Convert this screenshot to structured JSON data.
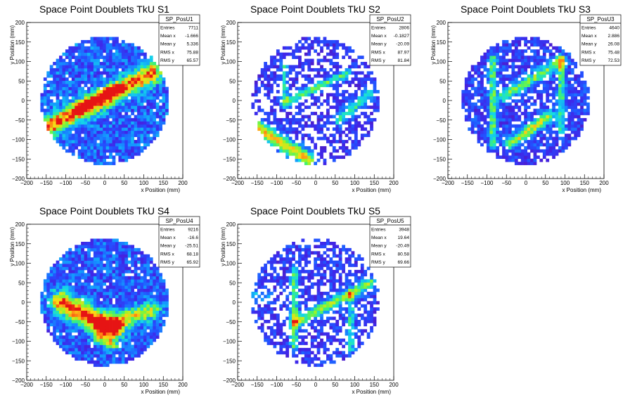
{
  "chart_data": [
    {
      "type": "heatmap",
      "title": "Space Point Doublets TkU S1",
      "xlabel": "x Position (mm)",
      "ylabel": "y Position (mm)",
      "xlim": [
        -200,
        200
      ],
      "ylim": [
        -200,
        200
      ],
      "xticks": [
        "−200",
        "−150",
        "−100",
        "−50",
        "0",
        "50",
        "100",
        "150",
        "200"
      ],
      "yticks": [
        "−200",
        "−150",
        "−100",
        "−50",
        "0",
        "50",
        "100",
        "150",
        "200"
      ],
      "grid": false,
      "stats": {
        "name": "SP_PosU1",
        "rows": [
          {
            "label": "Entries",
            "value": "7711"
          },
          {
            "label": "Mean x",
            "value": "-1.666"
          },
          {
            "label": "Mean y",
            "value": "5.336"
          },
          {
            "label": "RMS x",
            "value": "75.88"
          },
          {
            "label": "RMS y",
            "value": "65.57"
          }
        ]
      },
      "pattern": {
        "fill": 0.93,
        "base": 0.3,
        "lines": [
          {
            "x1": -140,
            "y1": -65,
            "x2": 120,
            "y2": 70,
            "w": 18,
            "a": 0.7
          },
          {
            "x1": -60,
            "y1": -20,
            "x2": 30,
            "y2": 30,
            "w": 10,
            "a": 0.4
          }
        ]
      }
    },
    {
      "type": "heatmap",
      "title": "Space Point Doublets TkU S2",
      "xlabel": "x Position (mm)",
      "ylabel": "y Position (mm)",
      "xlim": [
        -200,
        200
      ],
      "ylim": [
        -200,
        200
      ],
      "xticks": [
        "−200",
        "−150",
        "−100",
        "−50",
        "0",
        "50",
        "100",
        "150",
        "200"
      ],
      "yticks": [
        "−200",
        "−150",
        "−100",
        "−50",
        "0",
        "50",
        "100",
        "150",
        "200"
      ],
      "grid": false,
      "stats": {
        "name": "SP_PosU2",
        "rows": [
          {
            "label": "Entries",
            "value": "2806"
          },
          {
            "label": "Mean x",
            "value": "-0.1827"
          },
          {
            "label": "Mean y",
            "value": "-20.09"
          },
          {
            "label": "RMS x",
            "value": "87.97"
          },
          {
            "label": "RMS y",
            "value": "81.84"
          }
        ]
      },
      "pattern": {
        "fill": 0.55,
        "base": 0.18,
        "lines": [
          {
            "x1": -150,
            "y1": -70,
            "x2": -20,
            "y2": -150,
            "w": 14,
            "a": 0.65
          },
          {
            "x1": -70,
            "y1": 0,
            "x2": 80,
            "y2": 70,
            "w": 8,
            "a": 0.45
          },
          {
            "x1": -80,
            "y1": -10,
            "x2": -80,
            "y2": 90,
            "w": 7,
            "a": 0.35
          },
          {
            "x1": 60,
            "y1": -50,
            "x2": 140,
            "y2": 20,
            "w": 10,
            "a": 0.4
          }
        ]
      }
    },
    {
      "type": "heatmap",
      "title": "Space Point Doublets TkU S3",
      "xlabel": "x Position (mm)",
      "ylabel": "y Position (mm)",
      "xlim": [
        -200,
        200
      ],
      "ylim": [
        -200,
        200
      ],
      "xticks": [
        "−200",
        "−150",
        "−100",
        "−50",
        "0",
        "50",
        "100",
        "150",
        "200"
      ],
      "yticks": [
        "−200",
        "−150",
        "−100",
        "−50",
        "0",
        "50",
        "100",
        "150",
        "200"
      ],
      "grid": false,
      "stats": {
        "name": "SP_PosU3",
        "rows": [
          {
            "label": "Entries",
            "value": "4640"
          },
          {
            "label": "Mean x",
            "value": "2.886"
          },
          {
            "label": "Mean y",
            "value": "26.08"
          },
          {
            "label": "RMS x",
            "value": "75.48"
          },
          {
            "label": "RMS y",
            "value": "72.53"
          }
        ]
      },
      "pattern": {
        "fill": 0.78,
        "base": 0.22,
        "lines": [
          {
            "x1": -85,
            "y1": -110,
            "x2": -85,
            "y2": 110,
            "w": 7,
            "a": 0.45
          },
          {
            "x1": 90,
            "y1": -80,
            "x2": 90,
            "y2": 110,
            "w": 7,
            "a": 0.4
          },
          {
            "x1": -60,
            "y1": 10,
            "x2": 90,
            "y2": 100,
            "w": 10,
            "a": 0.45
          },
          {
            "x1": -40,
            "y1": -110,
            "x2": 60,
            "y2": -40,
            "w": 10,
            "a": 0.55
          }
        ]
      }
    },
    {
      "type": "heatmap",
      "title": "Space Point Doublets TkU S4",
      "xlabel": "x Position (mm)",
      "ylabel": "y Position (mm)",
      "xlim": [
        -200,
        200
      ],
      "ylim": [
        -200,
        200
      ],
      "xticks": [
        "−200",
        "−150",
        "−100",
        "−50",
        "0",
        "50",
        "100",
        "150",
        "200"
      ],
      "yticks": [
        "−200",
        "−150",
        "−100",
        "−50",
        "0",
        "50",
        "100",
        "150",
        "200"
      ],
      "grid": false,
      "stats": {
        "name": "SP_PosU4",
        "rows": [
          {
            "label": "Entries",
            "value": "9216"
          },
          {
            "label": "Mean x",
            "value": "-16.6"
          },
          {
            "label": "Mean y",
            "value": "-25.51"
          },
          {
            "label": "RMS x",
            "value": "68.18"
          },
          {
            "label": "RMS y",
            "value": "65.92"
          }
        ]
      },
      "pattern": {
        "fill": 0.95,
        "base": 0.28,
        "lines": [
          {
            "x1": -110,
            "y1": 0,
            "x2": 20,
            "y2": -70,
            "w": 20,
            "a": 0.75
          },
          {
            "x1": 0,
            "y1": -60,
            "x2": 120,
            "y2": -20,
            "w": 16,
            "a": 0.5
          },
          {
            "x1": -20,
            "y1": -90,
            "x2": 20,
            "y2": -110,
            "w": 10,
            "a": 0.35
          }
        ]
      }
    },
    {
      "type": "heatmap",
      "title": "Space Point Doublets TkU S5",
      "xlabel": "x Position (mm)",
      "ylabel": "y Position (mm)",
      "xlim": [
        -200,
        200
      ],
      "ylim": [
        -200,
        200
      ],
      "xticks": [
        "−200",
        "−150",
        "−100",
        "−50",
        "0",
        "50",
        "100",
        "150",
        "200"
      ],
      "yticks": [
        "−200",
        "−150",
        "−100",
        "−50",
        "0",
        "50",
        "100",
        "150",
        "200"
      ],
      "grid": false,
      "stats": {
        "name": "SP_PosU5",
        "rows": [
          {
            "label": "Entries",
            "value": "3948"
          },
          {
            "label": "Mean x",
            "value": "19.64"
          },
          {
            "label": "Mean y",
            "value": "-20.49"
          },
          {
            "label": "RMS x",
            "value": "80.58"
          },
          {
            "label": "RMS y",
            "value": "69.66"
          }
        ]
      },
      "pattern": {
        "fill": 0.62,
        "base": 0.2,
        "lines": [
          {
            "x1": -55,
            "y1": -110,
            "x2": -55,
            "y2": 80,
            "w": 7,
            "a": 0.45
          },
          {
            "x1": -50,
            "y1": -50,
            "x2": 140,
            "y2": 50,
            "w": 10,
            "a": 0.5
          },
          {
            "x1": 90,
            "y1": -120,
            "x2": 90,
            "y2": 20,
            "w": 7,
            "a": 0.35
          },
          {
            "x1": -160,
            "y1": 20,
            "x2": -120,
            "y2": 10,
            "w": 8,
            "a": 0.25
          }
        ]
      }
    }
  ]
}
